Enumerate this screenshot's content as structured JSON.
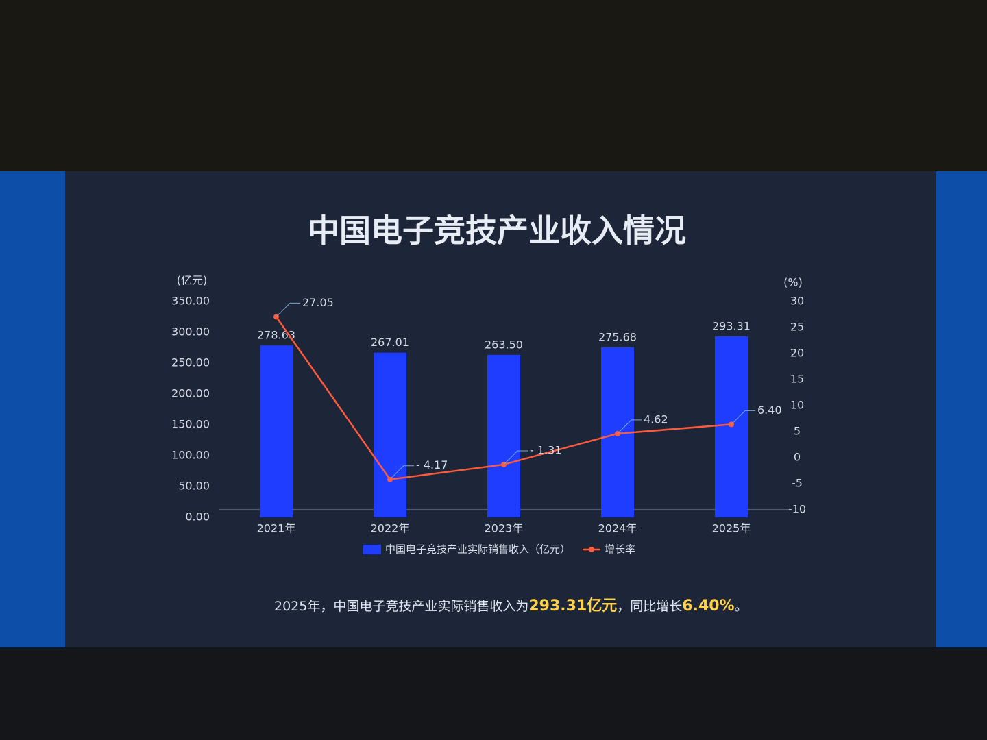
{
  "chart_data": {
    "type": "bar",
    "title": "中国电子竞技产业收入情况",
    "y_label": "(亿元)",
    "y2_label": "(%)",
    "categories": [
      "2021年",
      "2022年",
      "2023年",
      "2024年",
      "2025年"
    ],
    "series": [
      {
        "name": "中国电子竞技产业实际销售收入（亿元）",
        "color": "#1f3dff",
        "values": [
          278.63,
          267.01,
          263.5,
          275.68,
          293.31
        ],
        "value_labels": [
          "278.63",
          "267.01",
          "263.50",
          "275.68",
          "293.31"
        ]
      },
      {
        "name": "增长率",
        "type": "line",
        "axis": "y2",
        "color": "#ff5a3c",
        "values": [
          27.05,
          -4.17,
          -1.31,
          4.62,
          6.4
        ],
        "value_labels": [
          "27.05",
          "- 4.17",
          "- 1.31",
          "4.62",
          "6.40"
        ]
      }
    ],
    "ylim": [
      0,
      350
    ],
    "yticks": [
      {
        "value": 0,
        "label": "0.00"
      },
      {
        "value": 50,
        "label": "50.00"
      },
      {
        "value": 100,
        "label": "100.00"
      },
      {
        "value": 150,
        "label": "150.00"
      },
      {
        "value": 200,
        "label": "200.00"
      },
      {
        "value": 250,
        "label": "250.00"
      },
      {
        "value": 300,
        "label": "300.00"
      },
      {
        "value": 350,
        "label": "350.00"
      }
    ],
    "y2lim": [
      -10,
      30
    ],
    "y2ticks": [
      -10,
      -5,
      0,
      5,
      10,
      15,
      20,
      25,
      30
    ],
    "summary": [
      "2025年，中国电子竞技产业实际销售收入为",
      "293.31亿元",
      "，同比增长",
      "6.40%",
      "。"
    ]
  }
}
